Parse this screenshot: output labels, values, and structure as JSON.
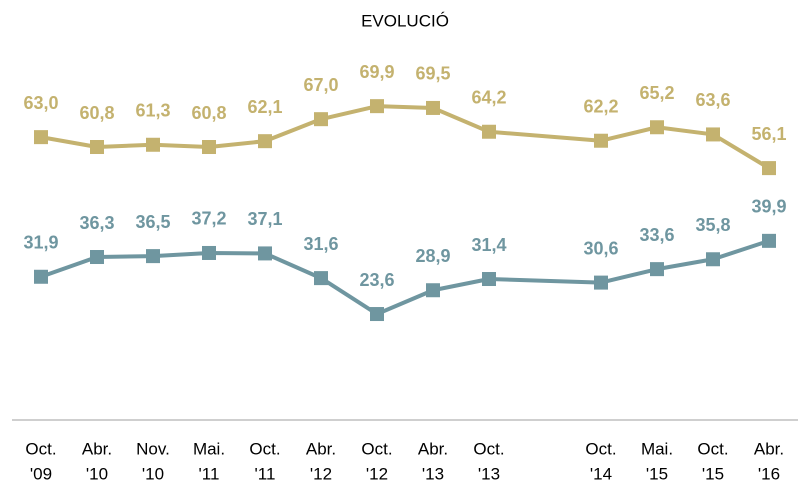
{
  "chart_data": {
    "type": "line",
    "title": "EVOLUCIÓ",
    "categories": [
      [
        "Oct.",
        "'09"
      ],
      [
        "Abr.",
        "'10"
      ],
      [
        "Nov.",
        "'10"
      ],
      [
        "Mai.",
        "'11"
      ],
      [
        "Oct.",
        "'11"
      ],
      [
        "Abr.",
        "'12"
      ],
      [
        "Oct.",
        "'12"
      ],
      [
        "Abr.",
        "'13"
      ],
      [
        "Oct.",
        "'13"
      ],
      null,
      [
        "Oct.",
        "'14"
      ],
      [
        "Mai.",
        "'15"
      ],
      [
        "Oct.",
        "'15"
      ],
      [
        "Abr.",
        "'16"
      ]
    ],
    "series": [
      {
        "color": "#c4b26f",
        "values": [
          63.0,
          60.8,
          61.3,
          60.8,
          62.1,
          67.0,
          69.9,
          69.5,
          64.2,
          null,
          62.2,
          65.2,
          63.6,
          56.1
        ],
        "value_labels": [
          "63,0",
          "60,8",
          "61,3",
          "60,8",
          "62,1",
          "67,0",
          "69,9",
          "69,5",
          "64,2",
          null,
          "62,2",
          "65,2",
          "63,6",
          "56,1"
        ]
      },
      {
        "color": "#6f96a0",
        "values": [
          31.9,
          36.3,
          36.5,
          37.2,
          37.1,
          31.6,
          23.6,
          28.9,
          31.4,
          null,
          30.6,
          33.6,
          35.8,
          39.9
        ],
        "value_labels": [
          "31,9",
          "36,3",
          "36,5",
          "37,2",
          "37,1",
          "31,6",
          "23,6",
          "28,9",
          "31,4",
          null,
          "30,6",
          "33,6",
          "35,8",
          "39,9"
        ]
      }
    ],
    "ylim": [
      0,
      80
    ]
  }
}
